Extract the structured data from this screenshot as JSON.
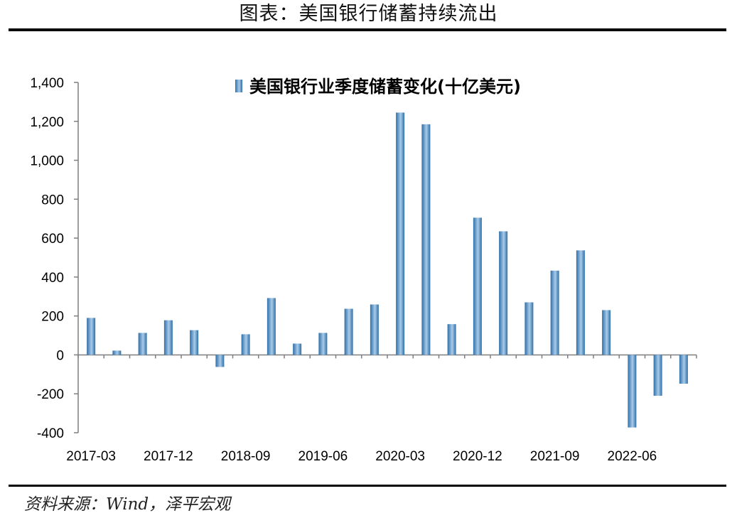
{
  "page": {
    "title": "图表：美国银行储蓄持续流出",
    "source": "资料来源：Wind，泽平宏观"
  },
  "colors": {
    "bar_dark": "#2f6fa8",
    "bar_light": "#a9cbe9",
    "axis": "#7f7f7f",
    "rule": "#000000"
  },
  "chart_data": {
    "type": "bar",
    "legend_position": "top-center",
    "grid": false,
    "xlabel": "",
    "ylabel": "",
    "ylim": [
      -400,
      1400
    ],
    "yticks": [
      -400,
      -200,
      0,
      200,
      400,
      600,
      800,
      1000,
      1200,
      1400
    ],
    "ytick_labels": [
      "-400",
      "-200",
      "0",
      "200",
      "400",
      "600",
      "800",
      "1,000",
      "1,200",
      "1,400"
    ],
    "categories": [
      "2017-03",
      "2017-06",
      "2017-09",
      "2017-12",
      "2018-03",
      "2018-06",
      "2018-09",
      "2018-12",
      "2019-03",
      "2019-06",
      "2019-09",
      "2019-12",
      "2020-03",
      "2020-06",
      "2020-09",
      "2020-12",
      "2021-03",
      "2021-06",
      "2021-09",
      "2021-12",
      "2022-03",
      "2022-06",
      "2022-09",
      "2022-12"
    ],
    "xtick_labels": [
      "2017-03",
      "2017-12",
      "2018-09",
      "2019-06",
      "2020-03",
      "2020-12",
      "2021-09",
      "2022-06"
    ],
    "series": [
      {
        "name": "美国银行业季度储蓄变化(十亿美元)",
        "values": [
          190,
          22,
          113,
          178,
          127,
          -62,
          106,
          292,
          58,
          113,
          237,
          259,
          1245,
          1185,
          158,
          705,
          635,
          270,
          433,
          537,
          230,
          -373,
          -210,
          -148
        ]
      }
    ]
  }
}
